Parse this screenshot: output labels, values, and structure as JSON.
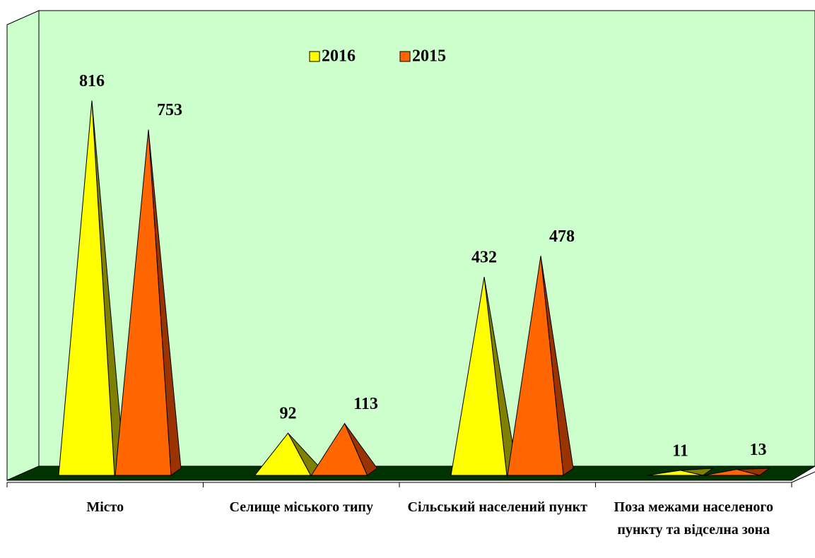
{
  "chart_data": {
    "type": "pyramid3d",
    "categories": [
      "Місто",
      "Селище міського типу",
      "Сільський населений пункт",
      "Поза межами населеного пункту та відселна зона"
    ],
    "series": [
      {
        "name": "2016",
        "color": "#ffff00",
        "side_color": "#808000",
        "values": [
          816,
          92,
          432,
          11
        ]
      },
      {
        "name": "2015",
        "color": "#ff6600",
        "side_color": "#993300",
        "values": [
          753,
          113,
          478,
          13
        ]
      }
    ],
    "legend": "top"
  }
}
